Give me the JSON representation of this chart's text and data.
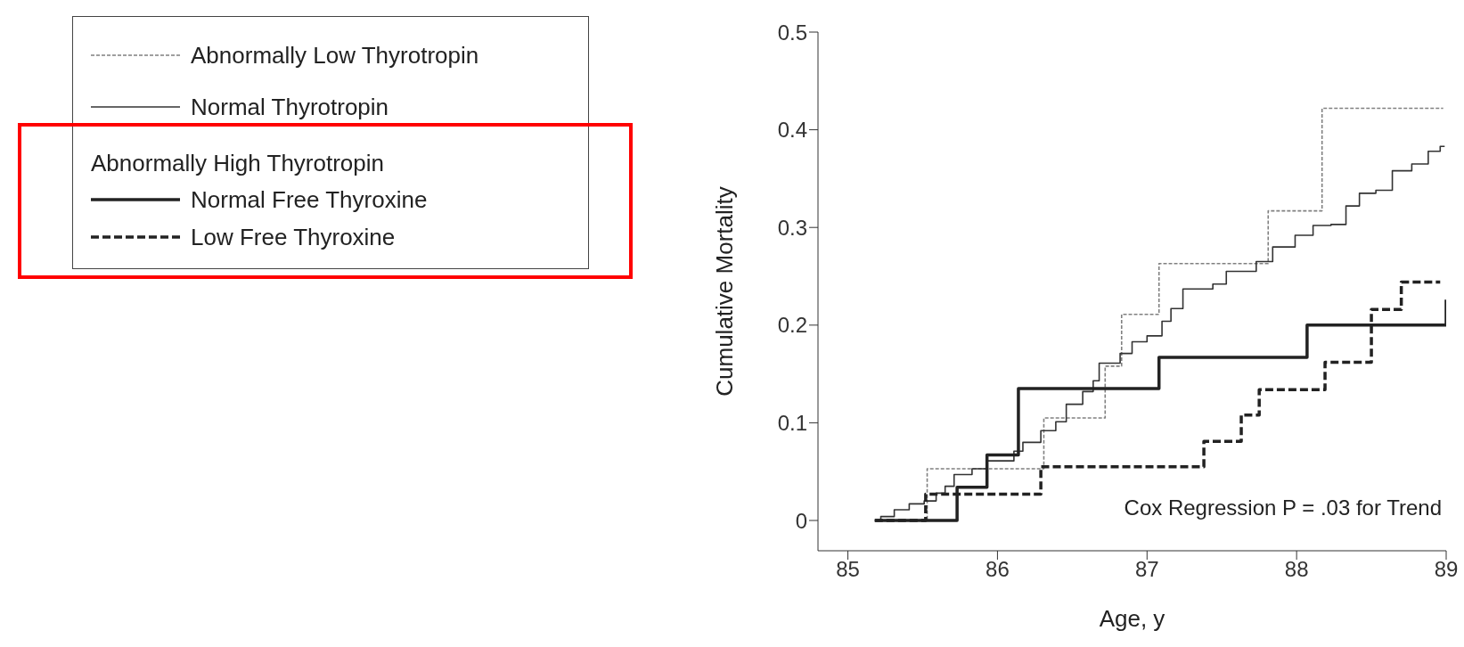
{
  "chart_data": {
    "type": "step",
    "xlabel": "Age, y",
    "ylabel": "Cumulative Mortality",
    "legend_title": "Abnormally High Thyrotropin",
    "legend": "left",
    "xlim": [
      84.8,
      89
    ],
    "xticks": [
      85,
      86,
      87,
      88,
      89
    ],
    "ylim": [
      -0.031,
      0.5
    ],
    "yticks": [
      0,
      0.1,
      0.2,
      0.3,
      0.4,
      0.5
    ],
    "marker": "none",
    "annotations": [
      "Cox Regression P = .03 for Trend"
    ],
    "series": [
      {
        "name": "Abnormally Low Thyrotropin",
        "color": "#808080",
        "line_style": "dashed",
        "x": [
          85.18,
          85.53,
          86.31,
          86.72,
          86.83,
          87.08,
          87.81,
          88.17,
          88.98
        ],
        "values": [
          0,
          0.053,
          0.105,
          0.158,
          0.211,
          0.263,
          0.317,
          0.422,
          0.422
        ]
      },
      {
        "name": "Normal Thyrotropin",
        "color": "#333333",
        "line_style": "solid",
        "x": [
          85.18,
          85.22,
          85.31,
          85.41,
          85.51,
          85.59,
          85.65,
          85.71,
          85.83,
          85.93,
          86.11,
          86.17,
          86.29,
          86.39,
          86.46,
          86.57,
          86.64,
          86.68,
          86.82,
          86.9,
          87.0,
          87.1,
          87.16,
          87.24,
          87.44,
          87.53,
          87.73,
          87.84,
          87.99,
          88.11,
          88.23,
          88.33,
          88.42,
          88.53,
          88.64,
          88.77,
          88.88,
          88.96,
          88.99
        ],
        "values": [
          0,
          0.004,
          0.011,
          0.017,
          0.02,
          0.028,
          0.035,
          0.047,
          0.053,
          0.061,
          0.071,
          0.08,
          0.092,
          0.101,
          0.119,
          0.132,
          0.143,
          0.161,
          0.171,
          0.183,
          0.189,
          0.204,
          0.217,
          0.237,
          0.242,
          0.255,
          0.265,
          0.28,
          0.292,
          0.302,
          0.303,
          0.322,
          0.335,
          0.338,
          0.358,
          0.365,
          0.378,
          0.383,
          0.383
        ]
      },
      {
        "name": "Normal Free Thyroxine",
        "color": "#222222",
        "line_style": "solid",
        "x": [
          85.18,
          85.73,
          85.93,
          86.14,
          87.08,
          88.07,
          89.0,
          89.0
        ],
        "values": [
          0,
          0.034,
          0.067,
          0.135,
          0.167,
          0.2,
          0.2,
          0.226
        ]
      },
      {
        "name": "Low Free Thyroxine",
        "color": "#222222",
        "line_style": "dashed",
        "x": [
          85.18,
          85.52,
          86.29,
          87.38,
          87.63,
          87.75,
          88.19,
          88.5,
          88.7,
          88.96
        ],
        "values": [
          0,
          0.027,
          0.055,
          0.081,
          0.108,
          0.134,
          0.162,
          0.216,
          0.244,
          0.244
        ]
      }
    ]
  }
}
